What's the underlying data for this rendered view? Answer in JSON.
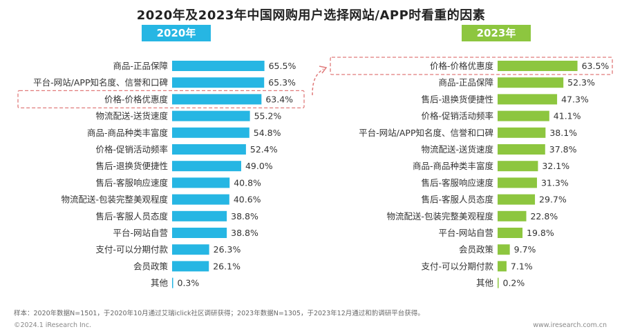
{
  "title": "2020年及2023年中国网购用户选择网站/APP时看重的因素",
  "footnote": "样本：2020年数据N=1501，于2020年10月通过艾瑞iclick社区调研获得；2023年数据N=1305，于2023年12月通过和豹调研平台获得。",
  "copyright": "©2024.1 iResearch Inc.",
  "website": "www.iresearch.com.cn",
  "colors": {
    "bar_2020": "#26b6e3",
    "bar_2023": "#8dc63f",
    "highlight": "#e07a7a"
  },
  "chart_data": [
    {
      "type": "bar",
      "orientation": "horizontal",
      "title": "2020年",
      "highlighted": "价格-价格优惠度",
      "categories": [
        "商品-正品保障",
        "平台-网站/APP知名度、信誉和口碑",
        "价格-价格优惠度",
        "物流配送-送货速度",
        "商品-商品种类丰富度",
        "价格-促销活动频率",
        "售后-退换货便捷性",
        "售后-客服响应速度",
        "物流配送-包装完整美观程度",
        "售后-客服人员态度",
        "平台-网站自营",
        "支付-可以分期付款",
        "会员政策",
        "其他"
      ],
      "values": [
        65.5,
        65.3,
        63.4,
        55.2,
        54.8,
        52.4,
        49.0,
        40.8,
        40.6,
        38.8,
        38.8,
        26.3,
        26.1,
        0.3
      ],
      "value_labels": [
        "65.5%",
        "65.3%",
        "63.4%",
        "55.2%",
        "54.8%",
        "52.4%",
        "49.0%",
        "40.8%",
        "40.6%",
        "38.8%",
        "38.8%",
        "26.3%",
        "26.1%",
        "0.3%"
      ]
    },
    {
      "type": "bar",
      "orientation": "horizontal",
      "title": "2023年",
      "highlighted": "价格-价格优惠度",
      "categories": [
        "价格-价格优惠度",
        "商品-正品保障",
        "售后-退换货便捷性",
        "价格-促销活动频率",
        "平台-网站/APP知名度、信誉和口碑",
        "物流配送-送货速度",
        "商品-商品种类丰富度",
        "售后-客服响应速度",
        "售后-客服人员态度",
        "物流配送-包装完整美观程度",
        "平台-网站自营",
        "会员政策",
        "支付-可以分期付款",
        "其他"
      ],
      "values": [
        63.5,
        52.3,
        47.3,
        41.1,
        38.1,
        37.8,
        32.1,
        31.3,
        29.7,
        22.8,
        19.8,
        9.7,
        7.1,
        0.2
      ],
      "value_labels": [
        "63.5%",
        "52.3%",
        "47.3%",
        "41.1%",
        "38.1%",
        "37.8%",
        "32.1%",
        "31.3%",
        "29.7%",
        "22.8%",
        "19.8%",
        "9.7%",
        "7.1%",
        "0.2%"
      ]
    }
  ]
}
